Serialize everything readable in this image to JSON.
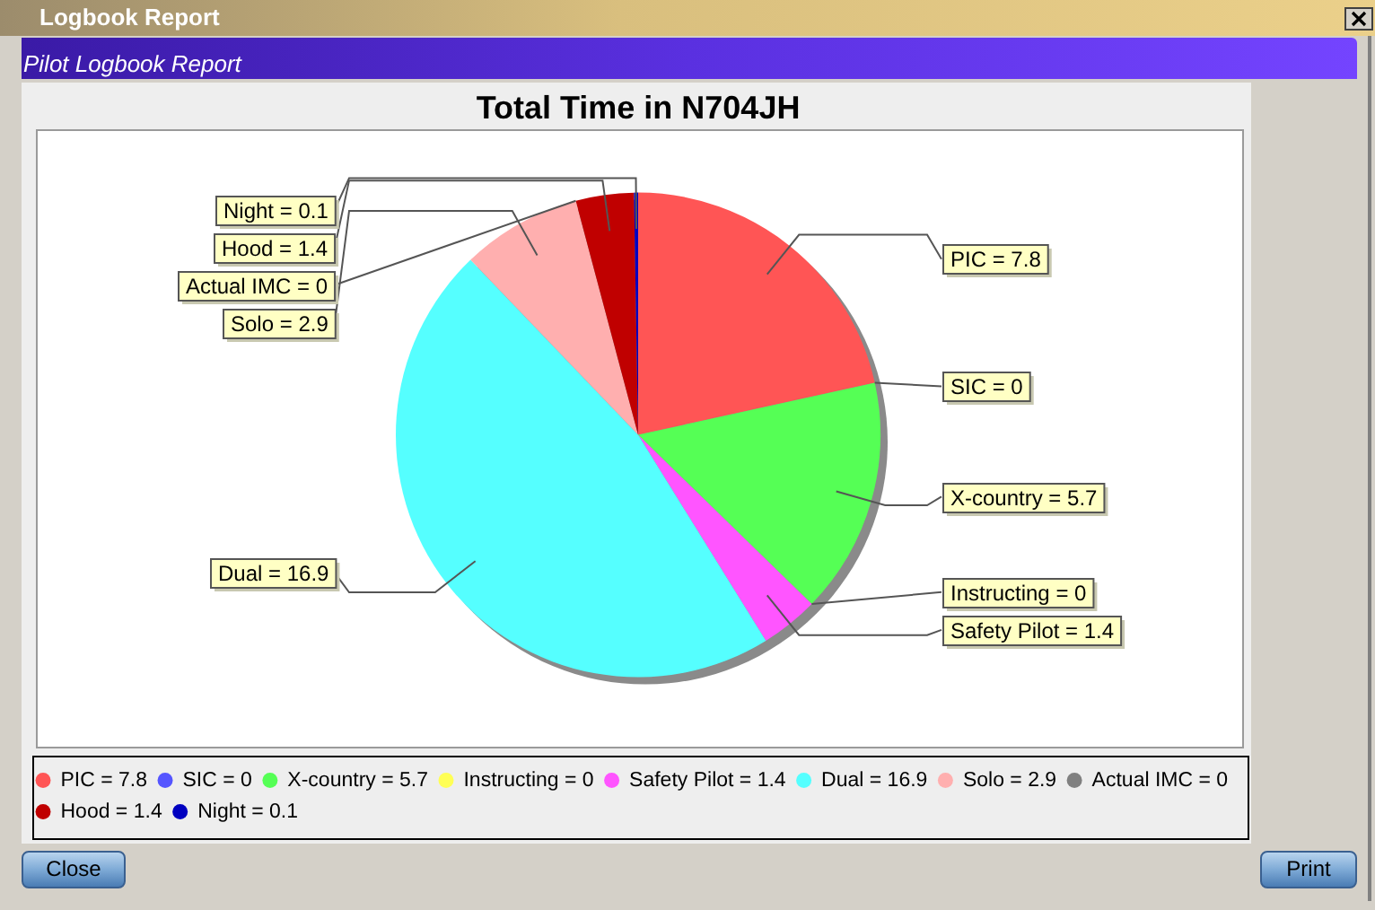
{
  "chart_data": {
    "type": "pie",
    "title": "Total Time in N704JH",
    "categories": [
      "PIC = 7.8",
      "SIC = 0",
      "X-country = 5.7",
      "Instructing = 0",
      "Safety Pilot = 1.4",
      "Dual = 16.9",
      "Solo = 2.9",
      "Actual IMC = 0",
      "Hood = 1.4",
      "Night = 0.1"
    ],
    "values": [
      7.8,
      0,
      5.7,
      0,
      1.4,
      16.9,
      2.9,
      0,
      1.4,
      0.1
    ],
    "colors": [
      "#ff5555",
      "#5555ff",
      "#55ff55",
      "#ffff55",
      "#ff55ff",
      "#55ffff",
      "#ffafaf",
      "#808080",
      "#c00000",
      "#0000c0"
    ],
    "legend": "bottom",
    "annotations": [
      "Logbook Report",
      "Pilot Logbook Report",
      "Close",
      "Print"
    ]
  }
}
